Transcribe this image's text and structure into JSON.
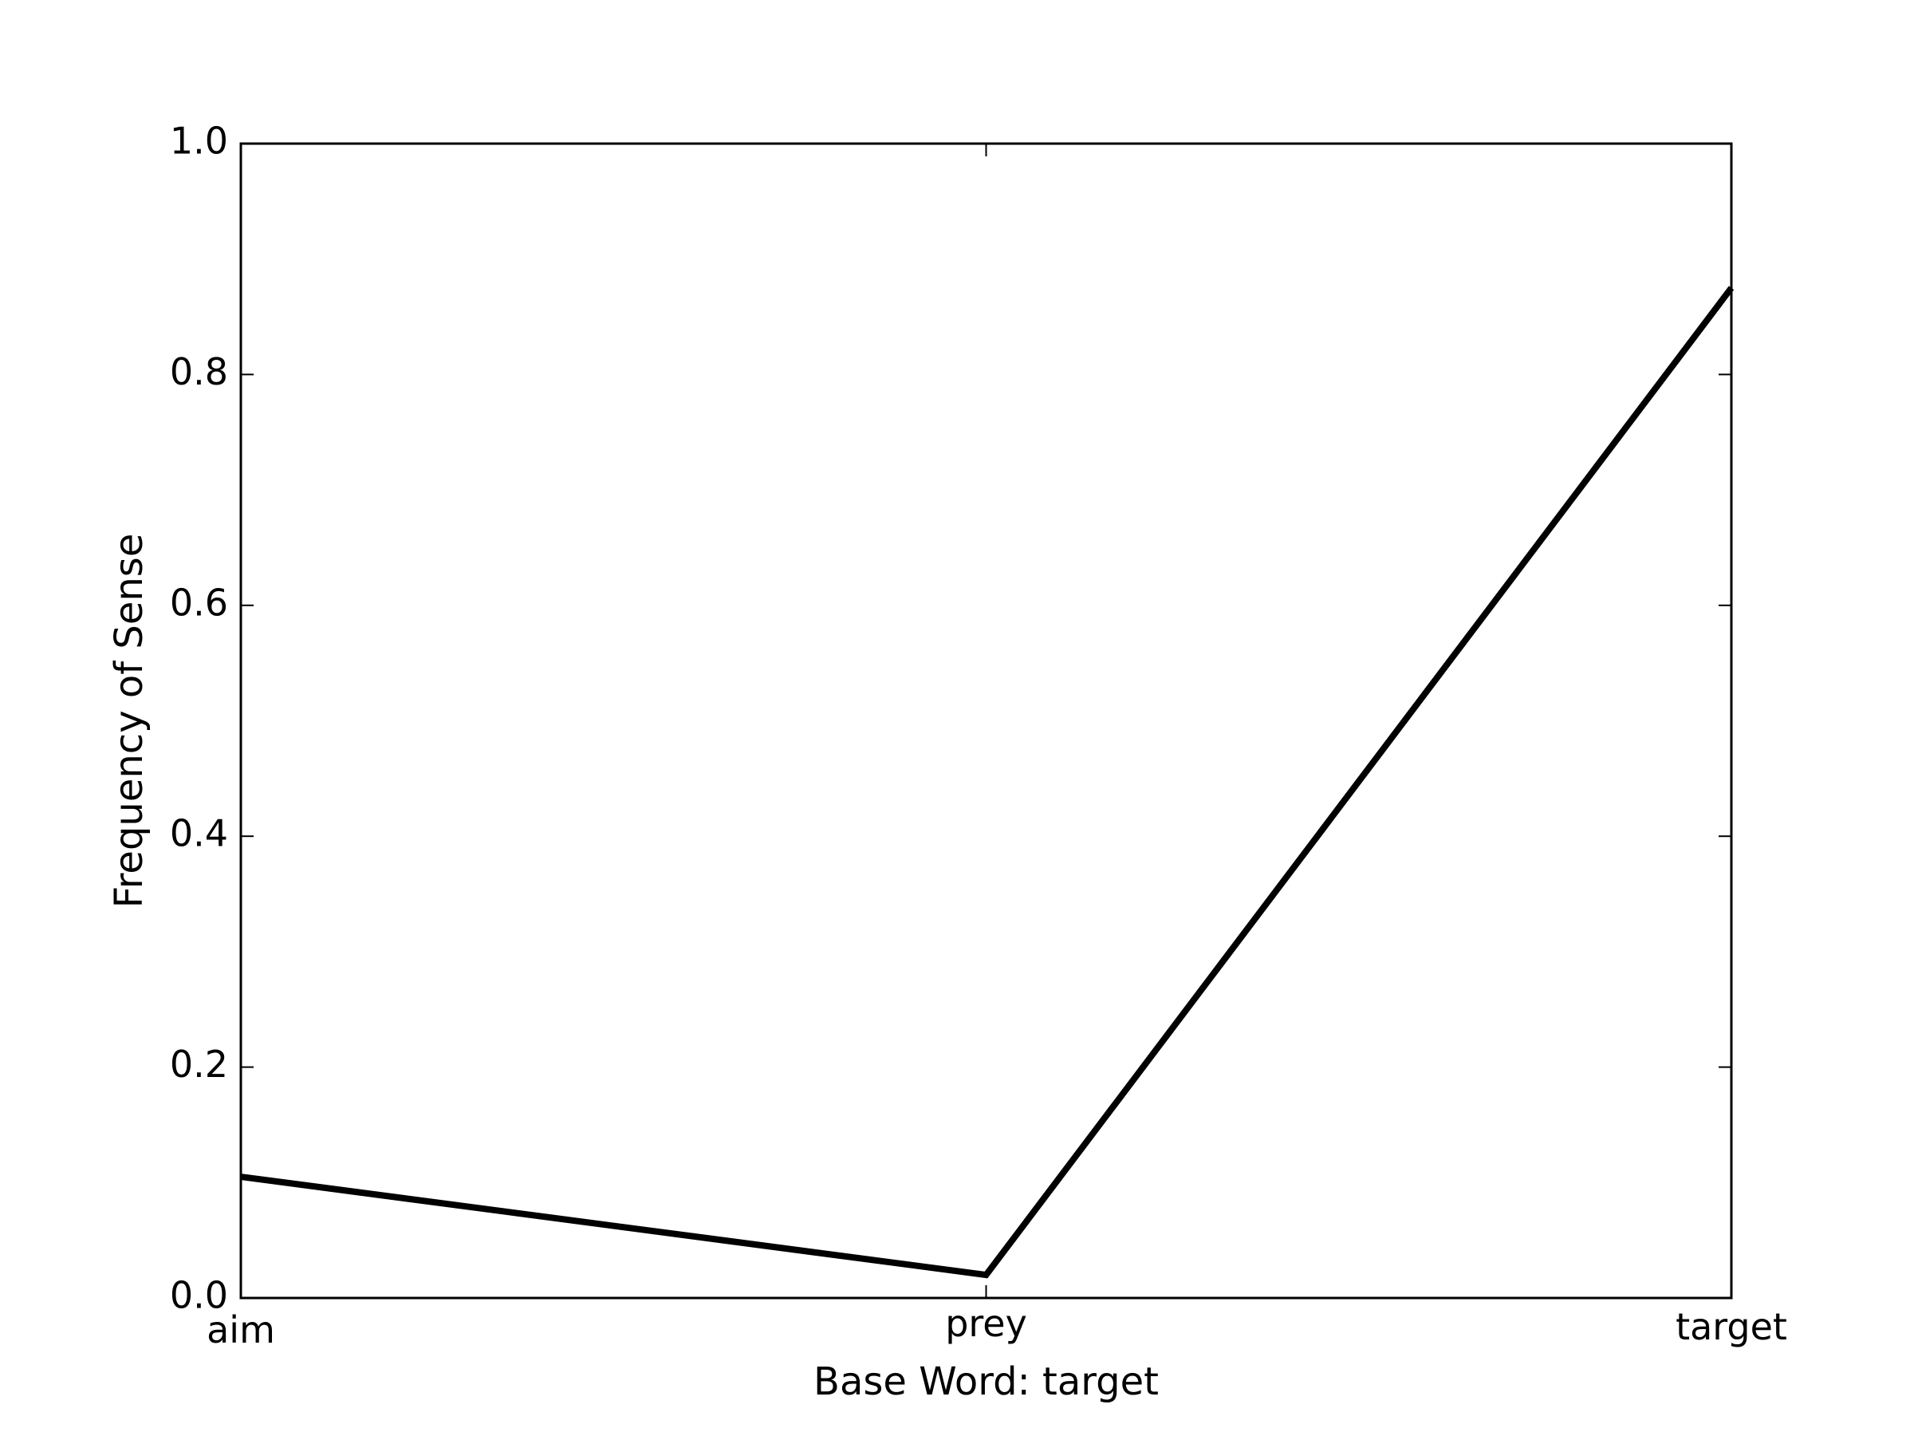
{
  "chart_data": {
    "type": "line",
    "title": "",
    "xlabel": "Base Word: target",
    "ylabel": "Frequency of Sense",
    "categories": [
      "aim",
      "prey",
      "target"
    ],
    "series": [
      {
        "values": [
          0.105,
          0.02,
          0.875
        ]
      }
    ],
    "ylim": [
      0.0,
      1.0
    ],
    "yticks": [
      "0.0",
      "0.2",
      "0.4",
      "0.6",
      "0.8",
      "1.0"
    ],
    "grid": false,
    "legend": "none",
    "colors": {
      "line": "#000000",
      "axes": "#000000",
      "background": "#ffffff"
    }
  }
}
